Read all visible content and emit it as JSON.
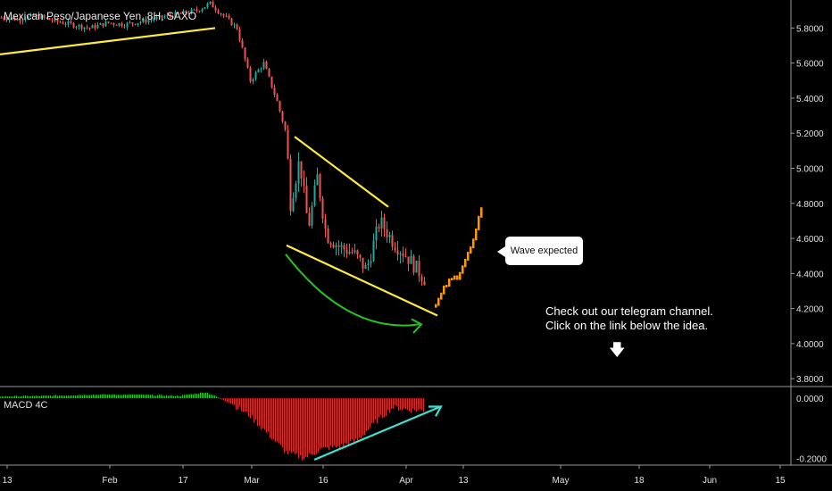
{
  "chart_data": {
    "type": "candlestick",
    "title": "Mexican Peso/Japanese Yen, 8H, SAXO",
    "price_axis": {
      "ticks": [
        "5.8000",
        "5.6000",
        "5.4000",
        "5.2000",
        "5.0000",
        "4.8000",
        "4.6000",
        "4.4000",
        "4.2000",
        "4.0000",
        "3.8000"
      ],
      "range": [
        3.76,
        5.96
      ]
    },
    "time_axis": {
      "ticks": [
        "13",
        "Feb",
        "17",
        "Mar",
        "16",
        "Apr",
        "13",
        "May",
        "18",
        "Jun",
        "15"
      ]
    },
    "indicator": {
      "name": "MACD 4C",
      "ticks": [
        "0.0000",
        "-0.2000"
      ],
      "range": [
        -0.22,
        0.03
      ]
    },
    "price_path": [
      [
        0,
        5.86
      ],
      [
        20,
        5.85
      ],
      [
        40,
        5.87
      ],
      [
        60,
        5.84
      ],
      [
        80,
        5.82
      ],
      [
        100,
        5.8
      ],
      [
        120,
        5.83
      ],
      [
        140,
        5.82
      ],
      [
        160,
        5.84
      ],
      [
        180,
        5.86
      ],
      [
        200,
        5.88
      ],
      [
        220,
        5.9
      ],
      [
        235,
        5.94
      ],
      [
        250,
        5.87
      ],
      [
        265,
        5.8
      ],
      [
        280,
        5.5
      ],
      [
        295,
        5.6
      ],
      [
        310,
        5.38
      ],
      [
        320,
        5.2
      ],
      [
        325,
        4.8
      ],
      [
        335,
        5.05
      ],
      [
        345,
        4.66
      ],
      [
        355,
        4.95
      ],
      [
        365,
        4.62
      ],
      [
        380,
        4.55
      ],
      [
        395,
        4.52
      ],
      [
        410,
        4.42
      ],
      [
        425,
        4.7
      ],
      [
        440,
        4.58
      ],
      [
        455,
        4.5
      ],
      [
        475,
        4.37
      ]
    ],
    "projection_path": [
      [
        488,
        4.21
      ],
      [
        500,
        4.33
      ],
      [
        512,
        4.38
      ],
      [
        524,
        4.5
      ],
      [
        532,
        4.6
      ],
      [
        540,
        4.8
      ]
    ],
    "macd_hist": [
      [
        0,
        0.006
      ],
      [
        50,
        0.008
      ],
      [
        100,
        0.012
      ],
      [
        150,
        0.012
      ],
      [
        200,
        0.008
      ],
      [
        230,
        0.02
      ],
      [
        240,
        0.008
      ],
      [
        260,
        -0.02
      ],
      [
        280,
        -0.06
      ],
      [
        300,
        -0.12
      ],
      [
        320,
        -0.18
      ],
      [
        340,
        -0.2
      ],
      [
        360,
        -0.17
      ],
      [
        380,
        -0.16
      ],
      [
        400,
        -0.14
      ],
      [
        420,
        -0.08
      ],
      [
        440,
        -0.03
      ],
      [
        460,
        -0.04
      ],
      [
        475,
        -0.04
      ]
    ],
    "trendlines": [
      {
        "color": "#ffeb3b",
        "p1": [
          0,
          5.65
        ],
        "p2": [
          241,
          5.8
        ]
      },
      {
        "color": "#ffeb3b",
        "p1": [
          330,
          5.18
        ],
        "p2": [
          435,
          4.78
        ]
      },
      {
        "color": "#ffeb3b",
        "p1": [
          321,
          4.56
        ],
        "p2": [
          490,
          4.16
        ]
      }
    ],
    "annotations": {
      "callout": "Wave expected",
      "note_line1": "Check out our telegram channel.",
      "note_line2": "Click on the link below the idea.",
      "arrow": "down-arrow-icon"
    },
    "colors": {
      "up": "#26a69a",
      "down": "#ef5350",
      "projection": "#ff9800",
      "trend": "#ffeb3b",
      "arc": "#25c425",
      "macd_trend": "#40e0d0"
    }
  }
}
